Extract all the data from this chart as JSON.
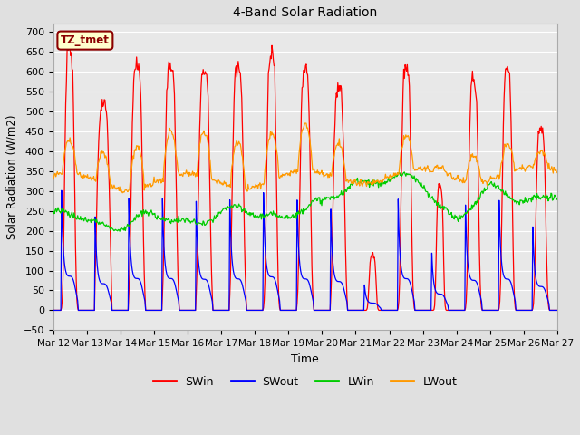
{
  "title": "4-Band Solar Radiation",
  "xlabel": "Time",
  "ylabel": "Solar Radiation (W/m2)",
  "ylim": [
    -50,
    720
  ],
  "yticks": [
    -50,
    0,
    50,
    100,
    150,
    200,
    250,
    300,
    350,
    400,
    450,
    500,
    550,
    600,
    650,
    700
  ],
  "fig_facecolor": "#e0e0e0",
  "plot_facecolor": "#e8e8e8",
  "grid_color": "#ffffff",
  "label_box_text": "TZ_tmet",
  "label_box_facecolor": "#ffffcc",
  "label_box_edgecolor": "#8b0000",
  "colors": {
    "SWin": "#ff0000",
    "SWout": "#0000ff",
    "LWin": "#00cc00",
    "LWout": "#ff9900"
  },
  "n_days": 15,
  "start_day": 12,
  "swin_peaks": [
    660,
    515,
    615,
    615,
    600,
    608,
    648,
    607,
    557,
    140,
    612,
    315,
    580,
    605,
    460
  ],
  "swin_widths": [
    0.14,
    0.18,
    0.16,
    0.16,
    0.16,
    0.16,
    0.14,
    0.15,
    0.16,
    0.1,
    0.14,
    0.1,
    0.14,
    0.14,
    0.14
  ]
}
